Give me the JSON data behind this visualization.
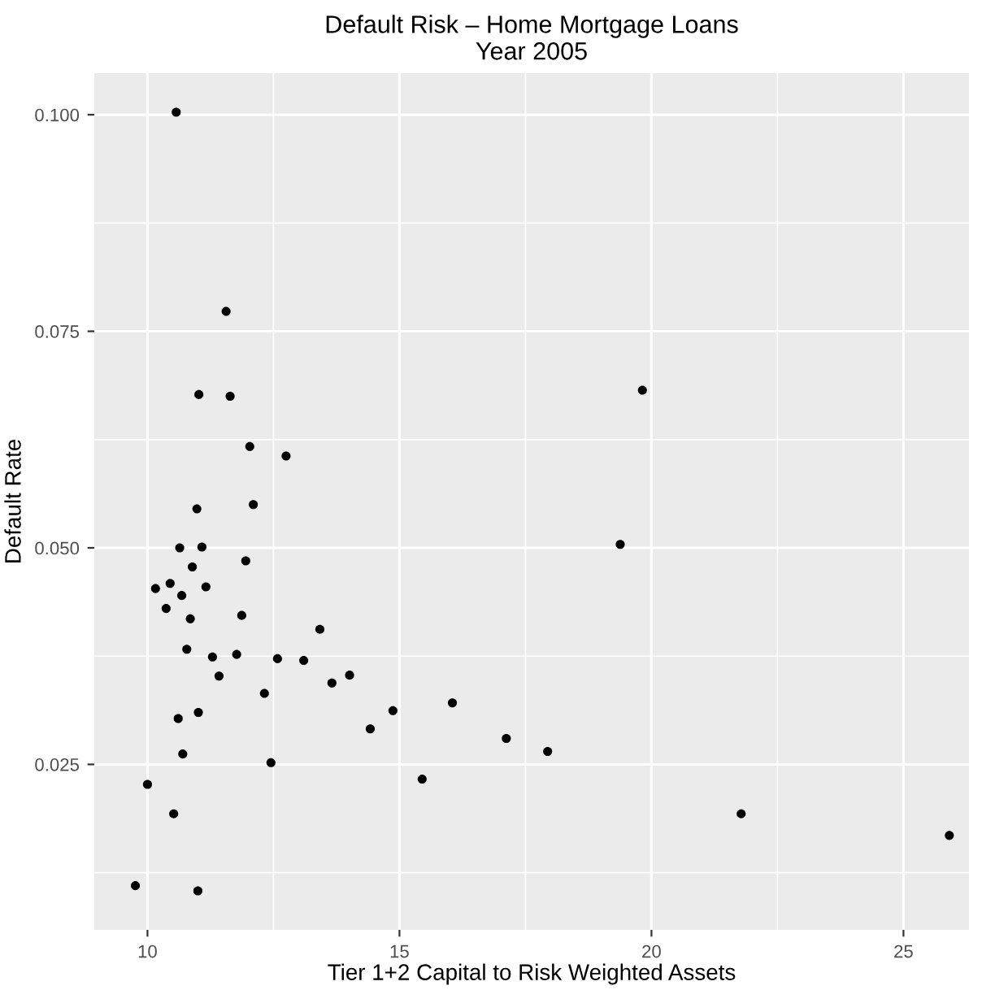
{
  "chart_data": {
    "type": "scatter",
    "title": "Default Risk – Home Mortgage Loans\nYear 2005",
    "xlabel": "Tier 1+2 Capital to Risk Weighted Assets",
    "ylabel": "Default Rate",
    "x": [
      10.57,
      11.56,
      11.02,
      11.64,
      12.03,
      12.75,
      10.98,
      12.1,
      10.64,
      11.08,
      10.89,
      11.95,
      10.16,
      10.45,
      10.68,
      11.16,
      10.37,
      10.85,
      11.87,
      13.42,
      10.78,
      11.29,
      11.77,
      12.58,
      13.1,
      11.42,
      14.01,
      13.66,
      12.32,
      16.05,
      14.87,
      11.01,
      10.61,
      14.42,
      10.7,
      12.45,
      15.45,
      10.0,
      10.52,
      9.76,
      11.0,
      19.82,
      19.38,
      17.12,
      17.94,
      21.78,
      25.91
    ],
    "values": [
      0.1003,
      0.0773,
      0.0677,
      0.0675,
      0.0617,
      0.0606,
      0.0545,
      0.055,
      0.05,
      0.0501,
      0.0478,
      0.0485,
      0.0453,
      0.0459,
      0.0445,
      0.0455,
      0.043,
      0.0418,
      0.0422,
      0.0406,
      0.0383,
      0.0374,
      0.0377,
      0.0372,
      0.037,
      0.0352,
      0.0353,
      0.0344,
      0.0332,
      0.0321,
      0.0312,
      0.031,
      0.0303,
      0.0291,
      0.0262,
      0.0252,
      0.0233,
      0.0227,
      0.0193,
      0.011,
      0.0104,
      0.0682,
      0.0504,
      0.028,
      0.0265,
      0.0193,
      0.0168
    ],
    "color": "#000000",
    "marker": "circle",
    "grid": true,
    "xlim": [
      8.945,
      26.3
    ],
    "ylim": [
      0.0059,
      0.1048
    ],
    "xticks": [
      10,
      {
        "value": 12.5,
        "label": null
      },
      15,
      {
        "value": 17.5,
        "label": null
      },
      20,
      {
        "value": 22.5,
        "label": null
      },
      25
    ],
    "yticks": [
      {
        "value": 0.0125,
        "label": null
      },
      {
        "value": 0.025,
        "label": "0.025"
      },
      {
        "value": 0.0375,
        "label": null
      },
      {
        "value": 0.05,
        "label": "0.050"
      },
      {
        "value": 0.0625,
        "label": null
      },
      {
        "value": 0.075,
        "label": "0.075"
      },
      {
        "value": 0.0875,
        "label": null
      },
      {
        "value": 0.1,
        "label": "0.100"
      }
    ]
  }
}
